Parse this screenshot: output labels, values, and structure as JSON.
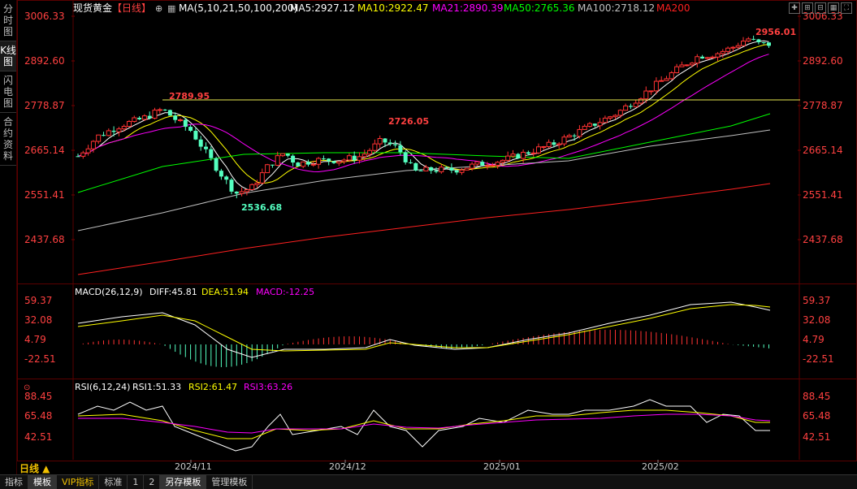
{
  "sidebar": {
    "tabs": [
      {
        "label": "分时图"
      },
      {
        "label": "K线图"
      },
      {
        "label": "闪电图"
      },
      {
        "label": "合约资料"
      }
    ]
  },
  "header": {
    "title": "现货黄金",
    "period_tag": "【日线】",
    "ma_label": "MA(5,10,21,50,100,200)",
    "ma5": "MA5:2927.12",
    "ma10": "MA10:2922.47",
    "ma21": "MA21:2890.39",
    "ma50": "MA50:2765.36",
    "ma100": "MA100:2718.12",
    "ma200": "MA200"
  },
  "price_axis": [
    "3006.33",
    "2892.60",
    "2778.87",
    "2665.14",
    "2551.41",
    "2437.68"
  ],
  "annotations": {
    "high1": "2789.95",
    "low1": "2536.68",
    "high2": "2726.05",
    "high3": "2956.01"
  },
  "macd": {
    "label": "MACD(26,12,9)",
    "diff": "DIFF:45.81",
    "dea": "DEA:51.94",
    "macd": "MACD:-12.25",
    "axis": [
      "59.37",
      "32.08",
      "4.79",
      "-22.51"
    ]
  },
  "rsi": {
    "label": "RSI(6,12,24)",
    "rsi1": "RSI1:51.33",
    "rsi2": "RSI2:61.47",
    "rsi3": "RSI3:63.26",
    "axis": [
      "88.45",
      "65.48",
      "42.51"
    ]
  },
  "dates": [
    "2024/11",
    "2024/12",
    "2025/01",
    "2025/02"
  ],
  "period_selector": "日线 ▲",
  "bottom_tabs": [
    "指标",
    "模板",
    "VIP指标",
    "标准",
    "1",
    "2",
    "另存模板",
    "管理模板"
  ],
  "colors": {
    "up": "#ff3232",
    "down": "#54ffc0",
    "ma5": "#ffffff",
    "ma10": "#ffff00",
    "ma21": "#ff00ff",
    "ma50": "#00ff00",
    "ma100": "#c0c0c0",
    "ma200": "#ff2020"
  }
}
